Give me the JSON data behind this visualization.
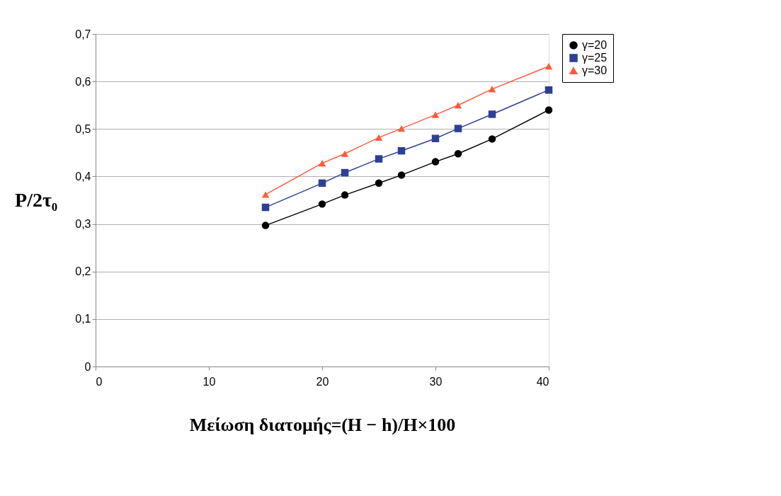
{
  "chart_data": {
    "type": "line",
    "xlabel": "Μείωση διατομής=(H − h)/H×100",
    "ylabel": "P/2τ₀",
    "x": [
      15,
      20,
      22,
      25,
      27,
      30,
      32,
      35,
      40
    ],
    "series": [
      {
        "name": "γ=20",
        "color": "#000000",
        "marker": "circle",
        "values": [
          0.297,
          0.342,
          0.361,
          0.386,
          0.403,
          0.431,
          0.448,
          0.479,
          0.54
        ]
      },
      {
        "name": "γ=25",
        "color": "#2e3f94",
        "marker": "square",
        "values": [
          0.335,
          0.386,
          0.408,
          0.437,
          0.454,
          0.48,
          0.501,
          0.531,
          0.582
        ]
      },
      {
        "name": "γ=30",
        "color": "#ff5a3c",
        "marker": "triangle",
        "values": [
          0.362,
          0.428,
          0.448,
          0.482,
          0.501,
          0.53,
          0.55,
          0.584,
          0.632
        ]
      }
    ],
    "xlim": [
      0,
      40
    ],
    "xticks": [
      0,
      10,
      20,
      30,
      40
    ],
    "ylim": [
      0,
      0.7
    ],
    "yticks": [
      0,
      {
        "value": 0.1,
        "label": "0,1"
      },
      {
        "value": 0.2,
        "label": "0,2"
      },
      {
        "value": 0.3,
        "label": "0,3"
      },
      {
        "value": 0.4,
        "label": "0,4"
      },
      {
        "value": 0.5,
        "label": "0,5"
      },
      {
        "value": 0.6,
        "label": "0,6"
      },
      {
        "value": 0.7,
        "label": "0,7"
      }
    ],
    "grid": "y",
    "legend": "right",
    "line_style": "solid"
  }
}
